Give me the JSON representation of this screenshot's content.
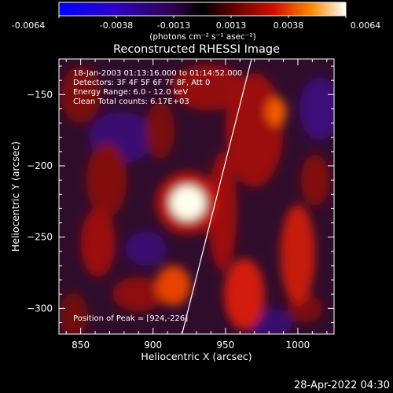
{
  "colorbar": {
    "tick_labels": [
      "-0.0064",
      "-0.0038",
      "-0.0013",
      "0.0013",
      "0.0038",
      "0.0064"
    ],
    "unit_label": "(photons cm⁻² s⁻¹ asec⁻²)",
    "range": [
      -0.0064,
      0.0064
    ]
  },
  "title": "Reconstructed RHESSI Image",
  "info_lines": [
    "18-Jan-2003 01:13:16.000 to 01:14:52.000",
    "Detectors: 3F 4F 5F 6F 7F 8F, Att 0",
    "Energy Range: 6.0 - 12.0 keV",
    "Clean    Total counts: 6.17E+03"
  ],
  "peak_text": "Position of Peak = [924,-226]",
  "axes": {
    "xlabel": "Heliocentric X (arcsec)",
    "ylabel": "Heliocentric Y (arcsec)",
    "xlim": [
      835,
      1025
    ],
    "ylim": [
      -318,
      -125
    ],
    "xticks": [
      850,
      900,
      950,
      1000
    ],
    "yticks": [
      -150,
      -200,
      -250,
      -300
    ]
  },
  "footer_date": "28-Apr-2022 04:30",
  "blobs": [
    {
      "x": 924,
      "y": -226,
      "w": 12,
      "h": 12,
      "a": 1.0
    },
    {
      "x": 924,
      "y": -226,
      "w": 22,
      "h": 22,
      "a": 0.28
    },
    {
      "x": 985,
      "y": -162,
      "w": 7,
      "h": 10,
      "a": 0.5
    },
    {
      "x": 970,
      "y": -175,
      "w": 20,
      "h": 40,
      "a": 0.22
    },
    {
      "x": 963,
      "y": -290,
      "w": 14,
      "h": 25,
      "a": 0.35
    },
    {
      "x": 914,
      "y": -284,
      "w": 12,
      "h": 14,
      "a": 0.44
    },
    {
      "x": 890,
      "y": -290,
      "w": 18,
      "h": 12,
      "a": 0.18
    },
    {
      "x": 1000,
      "y": -262,
      "w": 12,
      "h": 35,
      "a": 0.32
    },
    {
      "x": 862,
      "y": -254,
      "w": 12,
      "h": 24,
      "a": 0.22
    },
    {
      "x": 868,
      "y": -210,
      "w": 14,
      "h": 26,
      "a": 0.16
    },
    {
      "x": 948,
      "y": -232,
      "w": 10,
      "h": 42,
      "a": 0.22
    },
    {
      "x": 938,
      "y": -145,
      "w": 25,
      "h": 16,
      "a": 0.2
    },
    {
      "x": 850,
      "y": -150,
      "w": 14,
      "h": 20,
      "a": 0.14
    },
    {
      "x": 845,
      "y": -305,
      "w": 10,
      "h": 16,
      "a": 0.12
    },
    {
      "x": 905,
      "y": -175,
      "w": 10,
      "h": 20,
      "a": 0.14
    },
    {
      "x": 1012,
      "y": -210,
      "w": 10,
      "h": 18,
      "a": 0.16
    },
    {
      "x": 1005,
      "y": -300,
      "w": 12,
      "h": 10,
      "a": 0.14
    },
    {
      "x": 878,
      "y": -180,
      "w": 22,
      "h": 18,
      "a": -0.1
    },
    {
      "x": 1015,
      "y": -160,
      "w": 14,
      "h": 22,
      "a": -0.12
    },
    {
      "x": 895,
      "y": -258,
      "w": 14,
      "h": 12,
      "a": -0.1
    },
    {
      "x": 980,
      "y": -310,
      "w": 16,
      "h": 10,
      "a": -0.08
    }
  ],
  "limb_line": {
    "x1": 968,
    "y1": -125,
    "x2": 920,
    "y2": -318
  }
}
